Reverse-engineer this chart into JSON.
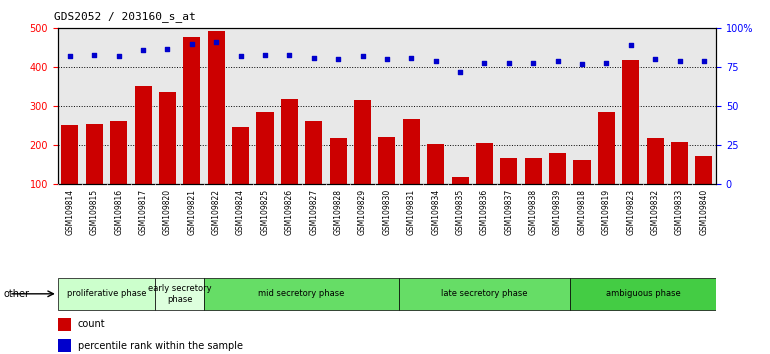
{
  "title": "GDS2052 / 203160_s_at",
  "samples": [
    "GSM109814",
    "GSM109815",
    "GSM109816",
    "GSM109817",
    "GSM109820",
    "GSM109821",
    "GSM109822",
    "GSM109824",
    "GSM109825",
    "GSM109826",
    "GSM109827",
    "GSM109828",
    "GSM109829",
    "GSM109830",
    "GSM109831",
    "GSM109834",
    "GSM109835",
    "GSM109836",
    "GSM109837",
    "GSM109838",
    "GSM109839",
    "GSM109818",
    "GSM109819",
    "GSM109823",
    "GSM109832",
    "GSM109833",
    "GSM109840"
  ],
  "counts": [
    253,
    255,
    261,
    353,
    336,
    478,
    492,
    246,
    286,
    319,
    262,
    218,
    316,
    221,
    267,
    202,
    118,
    205,
    168,
    166,
    181,
    163,
    285,
    418,
    218,
    207,
    172
  ],
  "percentiles": [
    82,
    83,
    82,
    86,
    87,
    90,
    91,
    82,
    83,
    83,
    81,
    80,
    82,
    80,
    81,
    79,
    72,
    78,
    78,
    78,
    79,
    77,
    78,
    89,
    80,
    79,
    79
  ],
  "phases": [
    {
      "label": "proliferative phase",
      "start": 0,
      "end": 4,
      "color": "#ccffcc"
    },
    {
      "label": "early secretory\nphase",
      "start": 4,
      "end": 6,
      "color": "#ddffdd"
    },
    {
      "label": "mid secretory phase",
      "start": 6,
      "end": 14,
      "color": "#66dd66"
    },
    {
      "label": "late secretory phase",
      "start": 14,
      "end": 21,
      "color": "#66dd66"
    },
    {
      "label": "ambiguous phase",
      "start": 21,
      "end": 27,
      "color": "#44cc44"
    }
  ],
  "bar_color": "#cc0000",
  "dot_color": "#0000cc",
  "ylim_left": [
    100,
    500
  ],
  "ylim_right": [
    0,
    100
  ],
  "yticks_left": [
    100,
    200,
    300,
    400,
    500
  ],
  "yticks_right": [
    0,
    25,
    50,
    75,
    100
  ],
  "yticklabels_right": [
    "0",
    "25",
    "50",
    "75",
    "100%"
  ],
  "bg_color": "#e8e8e8",
  "grid_color": "black"
}
